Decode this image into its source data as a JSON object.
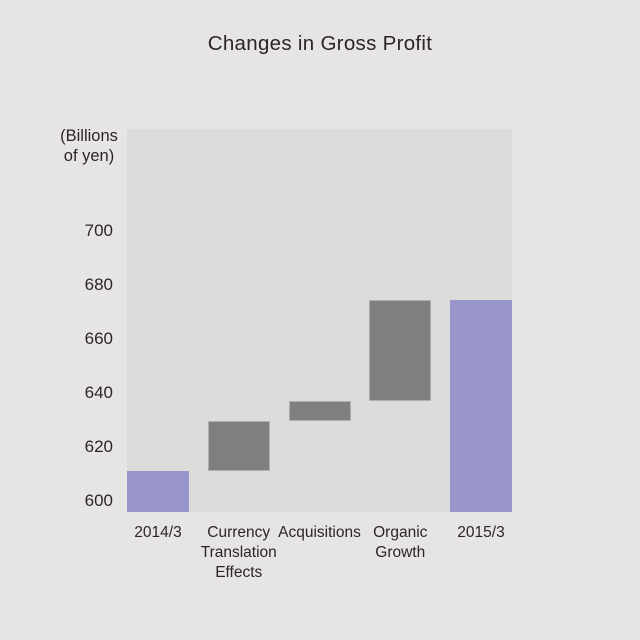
{
  "page": {
    "background": "#E6E5E3",
    "text_color": "#2B2526"
  },
  "chart_data": {
    "type": "bar",
    "subtype": "waterfall",
    "title": "Changes in Gross Profit",
    "unit_label_lines": [
      "(Billions",
      "of yen)"
    ],
    "xlabel": "",
    "ylabel": "(Billions of yen)",
    "yticks": [
      600,
      620,
      640,
      660,
      680,
      700
    ],
    "ylim": [
      596,
      737.5
    ],
    "grid": false,
    "legend": false,
    "plot_background": "#DCDCDB",
    "colors": {
      "total_bar": "#9996CB",
      "delta_bar": "#7F7F7F"
    },
    "categories": [
      "2014/3",
      "Currency Translation Effects",
      "Acquisitions",
      "Organic Growth",
      "2015/3"
    ],
    "bars": [
      {
        "label": "2014/3",
        "label_lines": [
          "2014/3"
        ],
        "kind": "total",
        "value": 611,
        "start": null,
        "end": 611
      },
      {
        "label": "Currency Translation Effects",
        "label_lines": [
          "Currency",
          "Translation",
          "Effects"
        ],
        "kind": "delta",
        "value": 18.5,
        "start": 611,
        "end": 629.5
      },
      {
        "label": "Acquisitions",
        "label_lines": [
          "Acquisitions"
        ],
        "kind": "delta",
        "value": 7.5,
        "start": 629.5,
        "end": 637
      },
      {
        "label": "Organic Growth",
        "label_lines": [
          "Organic",
          "Growth"
        ],
        "kind": "delta",
        "value": 37.5,
        "start": 637,
        "end": 674.5
      },
      {
        "label": "2015/3",
        "label_lines": [
          "2015/3"
        ],
        "kind": "total",
        "value": 674.5,
        "start": null,
        "end": 674.5
      }
    ]
  }
}
